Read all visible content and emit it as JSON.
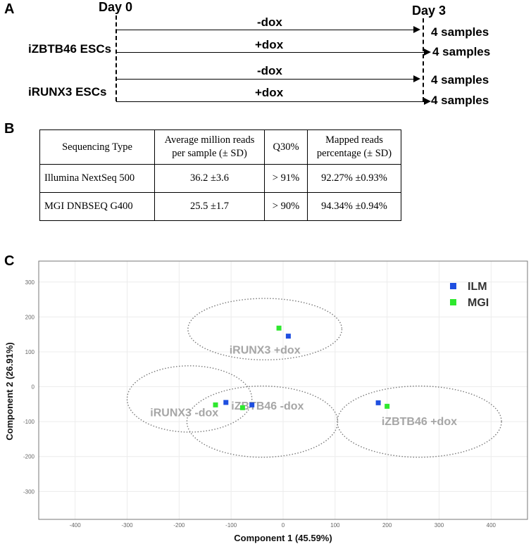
{
  "panel_a": {
    "letter": "A",
    "day_start": "Day 0",
    "day_end": "Day 3",
    "cell_lines": [
      "iZBTB46 ESCs",
      "iRUNX3 ESCs"
    ],
    "rows": [
      {
        "condition": "-dox",
        "samples": "4 samples"
      },
      {
        "condition": "+dox",
        "samples": "4 samples"
      },
      {
        "condition": "-dox",
        "samples": "4 samples"
      },
      {
        "condition": "+dox",
        "samples": "4 samples"
      }
    ]
  },
  "panel_b": {
    "letter": "B",
    "headers": [
      "Sequencing Type",
      "Average million reads",
      "per sample (± SD)",
      "Q30%",
      "Mapped reads",
      "percentage (± SD)"
    ],
    "rows": [
      [
        "Illumina NextSeq 500",
        "36.2 ±3.6",
        "> 91%",
        "92.27% ±0.93%"
      ],
      [
        "MGI DNBSEQ G400",
        "25.5 ±1.7",
        "> 90%",
        "94.34% ±0.94%"
      ]
    ]
  },
  "panel_c": {
    "letter": "C"
  },
  "chart_data": {
    "type": "scatter",
    "xlabel": "Component 1 (45.59%)",
    "ylabel": "Component 2 (26.91%)",
    "xlim": [
      -470,
      470
    ],
    "ylim": [
      -380,
      360
    ],
    "xticks": [
      -400,
      -300,
      -200,
      -100,
      0,
      100,
      200,
      300,
      400
    ],
    "yticks": [
      -300,
      -200,
      -100,
      0,
      100,
      200,
      300
    ],
    "grid": true,
    "legend_position": "top-right",
    "series": [
      {
        "name": "ILM",
        "color": "#1f4fe0",
        "points": [
          [
            10,
            145
          ],
          [
            -110,
            -45
          ],
          [
            -60,
            -52
          ],
          [
            183,
            -46
          ]
        ]
      },
      {
        "name": "MGI",
        "color": "#2ee82e",
        "points": [
          [
            -8,
            168
          ],
          [
            -130,
            -52
          ],
          [
            -78,
            -60
          ],
          [
            200,
            -56
          ]
        ]
      }
    ],
    "groups": [
      {
        "label": "iRUNX3 +dox",
        "cx": -35,
        "cy": 165,
        "rx": 148,
        "ry": 88
      },
      {
        "label": "iRUNX3 -dox",
        "cx": -180,
        "cy": -35,
        "rx": 120,
        "ry": 95
      },
      {
        "label": "iZBTB46 -dox",
        "cx": -40,
        "cy": -100,
        "rx": 145,
        "ry": 102
      },
      {
        "label": "iZBTB46 +dox",
        "cx": 262,
        "cy": -100,
        "rx": 158,
        "ry": 102
      }
    ]
  }
}
